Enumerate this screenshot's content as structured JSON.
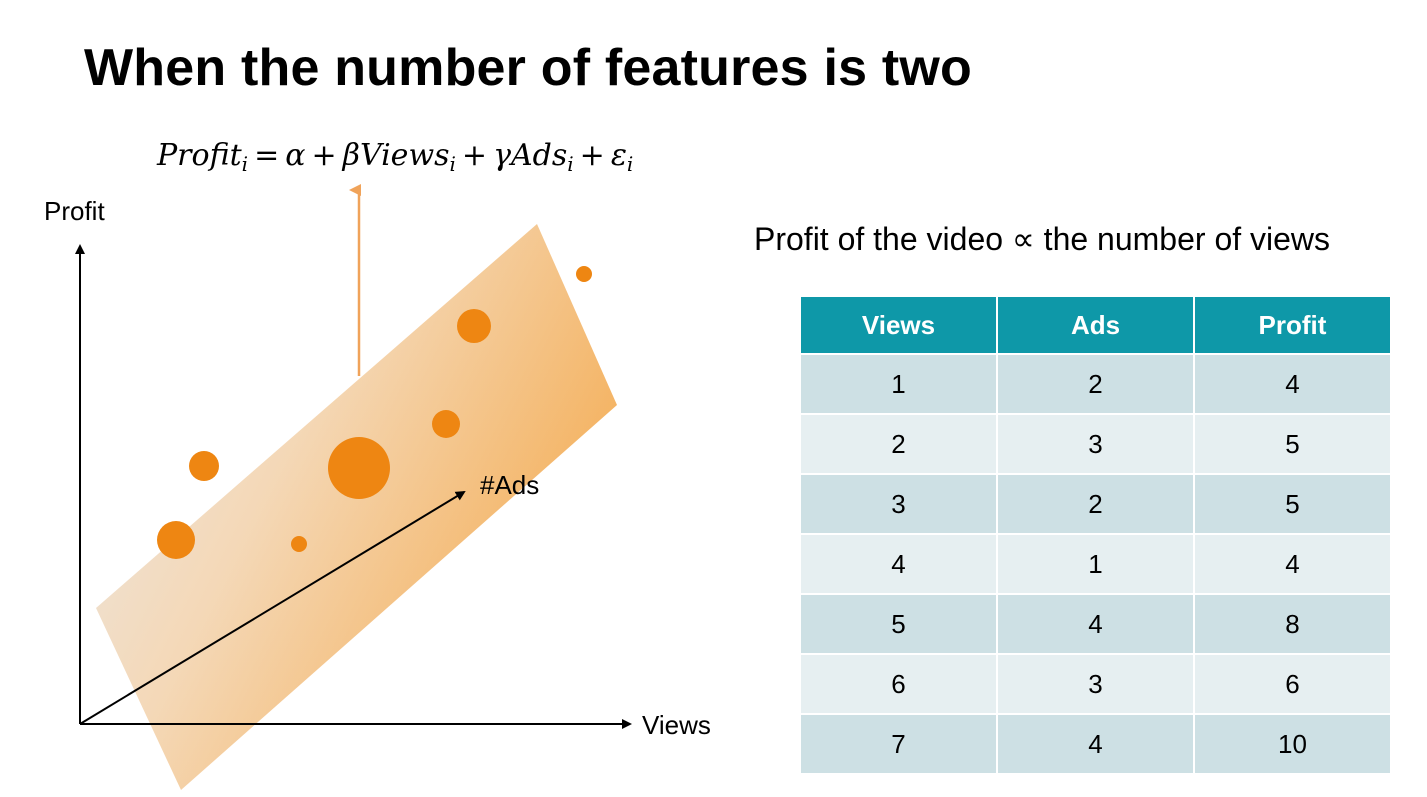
{
  "slide": {
    "title": "When the number of features is two"
  },
  "formula": {
    "profit": "Profit",
    "sub_i": "i",
    "equals": "=",
    "alpha": "α",
    "plus": "+",
    "beta_views": "βViews",
    "gamma_ads": "γAds",
    "epsilon": "ε"
  },
  "diagram": {
    "y_axis_label": "Profit",
    "x_axis_label": "Views",
    "z_axis_label": "#Ads",
    "plane_color": "#f4a94c",
    "point_color": "#ee8612",
    "arrow_color": "#f0a35a"
  },
  "statement": "Profit of the video ∝ the number of views",
  "table": {
    "headers": [
      "Views",
      "Ads",
      "Profit"
    ],
    "header_color": "#0e98a8",
    "rows": [
      [
        "1",
        "2",
        "4"
      ],
      [
        "2",
        "3",
        "5"
      ],
      [
        "3",
        "2",
        "5"
      ],
      [
        "4",
        "1",
        "4"
      ],
      [
        "5",
        "4",
        "8"
      ],
      [
        "6",
        "3",
        "6"
      ],
      [
        "7",
        "4",
        "10"
      ]
    ]
  }
}
